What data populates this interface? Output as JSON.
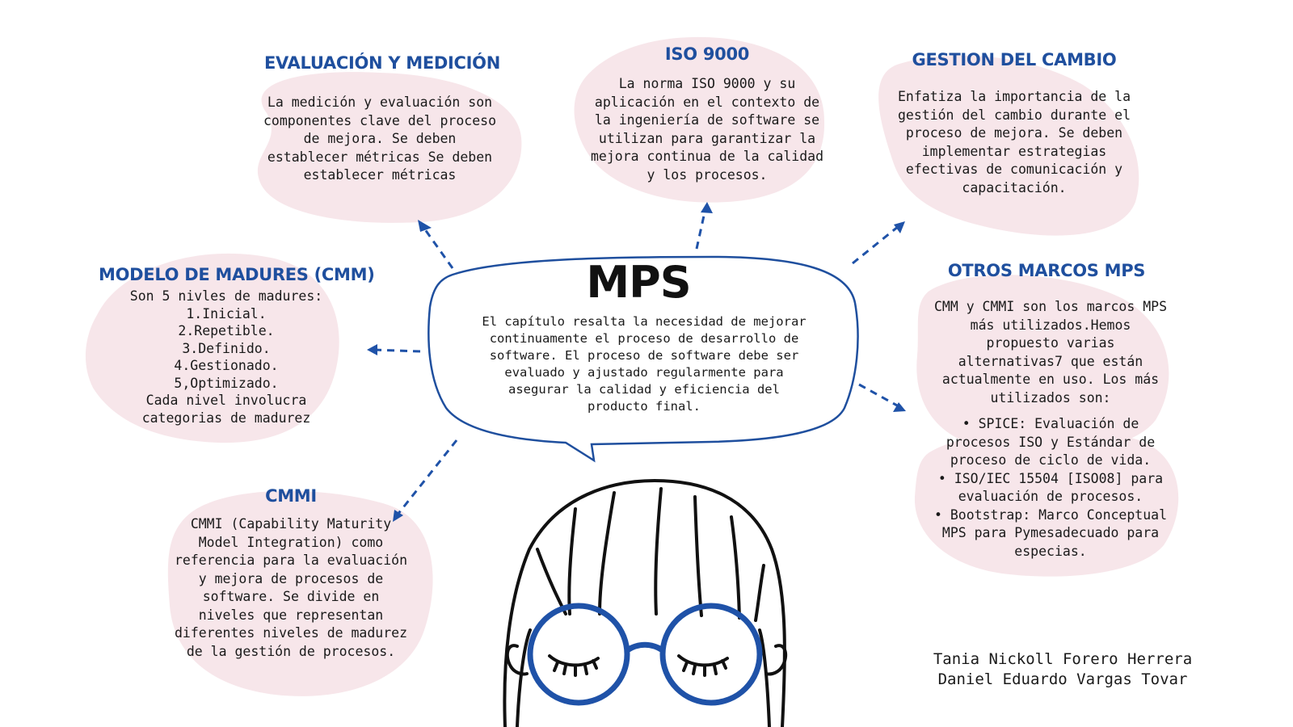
{
  "center": {
    "title": "MPS",
    "text": "El capítulo resalta la necesidad de mejorar\ncontinuamente el proceso de desarrollo de\nsoftware. El proceso de software debe ser\nevaluado y ajustado regularmente para\nasegurar la calidad y eficiencia del\nproducto final."
  },
  "nodes": {
    "evaluacion": {
      "title": "EVALUACIÓN Y MEDICIÓN",
      "text": "La medición y evaluación son\ncomponentes clave del proceso\nde mejora. Se deben\nestablecer métricas Se deben\nestablecer métricas"
    },
    "iso": {
      "title": "ISO 9000",
      "text": "La norma ISO 9000 y su\naplicación en el contexto de\nla ingeniería de software se\nutilizan para garantizar la\nmejora continua de la calidad\ny los procesos."
    },
    "gestion": {
      "title": "GESTION DEL CAMBIO",
      "text": "Enfatiza la importancia de la\ngestión del cambio durante el\nproceso de mejora. Se deben\nimplementar estrategias\nefectivas de comunicación y\ncapacitación."
    },
    "modelo": {
      "title": "MODELO DE MADURES (CMM)",
      "text": "Son 5 nivles de madures:\n1.Inicial.\n2.Repetible.\n3.Definido.\n4.Gestionado.\n5,Optimizado.\nCada nivel involucra\ncategorias de madurez"
    },
    "otros": {
      "title": "OTROS MARCOS MPS",
      "text": "CMM y CMMI son los marcos MPS\nmás utilizados.Hemos\npropuesto varias\nalternativas7 que están\nactualmente en uso. Los más\nutilizados son:",
      "list": "• SPICE: Evaluación de\nprocesos ISO y Estándar de\nproceso de ciclo de vida.\n• ISO/IEC 15504 [ISO08] para\nevaluación de procesos.\n• Bootstrap: Marco Conceptual\nMPS para Pymesadecuado para\nespecias."
    },
    "cmmi": {
      "title": "CMMI",
      "text": "CMMI (Capability Maturity\nModel Integration) como\nreferencia para la evaluación\ny mejora de procesos de\nsoftware. Se divide en\nniveles que representan\ndiferentes niveles de madurez\nde la gestión de procesos."
    }
  },
  "authors": "Tania Nickoll Forero Herrera\nDaniel Eduardo Vargas Tovar",
  "colors": {
    "accent": "#1f4f9e",
    "blob": "#f7e6ea",
    "glasses": "#1f52a8"
  }
}
